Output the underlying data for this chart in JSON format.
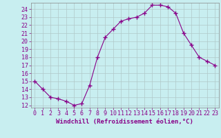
{
  "x": [
    0,
    1,
    2,
    3,
    4,
    5,
    6,
    7,
    8,
    9,
    10,
    11,
    12,
    13,
    14,
    15,
    16,
    17,
    18,
    19,
    20,
    21,
    22,
    23
  ],
  "y": [
    15,
    14,
    13,
    12.8,
    12.5,
    12,
    12.2,
    14.5,
    18,
    20.5,
    21.5,
    22.5,
    22.8,
    23,
    23.5,
    24.5,
    24.5,
    24.3,
    23.5,
    21,
    19.5,
    18,
    17.5,
    17
  ],
  "line_color": "#880088",
  "marker": "+",
  "marker_size": 4,
  "bg_color": "#c8eef0",
  "grid_color": "#b0c8c8",
  "xlabel": "Windchill (Refroidissement éolien,°C)",
  "ylim": [
    12,
    24.5
  ],
  "xlim": [
    -0.5,
    23.5
  ],
  "yticks": [
    12,
    13,
    14,
    15,
    16,
    17,
    18,
    19,
    20,
    21,
    22,
    23,
    24
  ],
  "xticks": [
    0,
    1,
    2,
    3,
    4,
    5,
    6,
    7,
    8,
    9,
    10,
    11,
    12,
    13,
    14,
    15,
    16,
    17,
    18,
    19,
    20,
    21,
    22,
    23
  ],
  "font_color": "#880088",
  "tick_font_size": 6,
  "label_font_size": 6.5
}
